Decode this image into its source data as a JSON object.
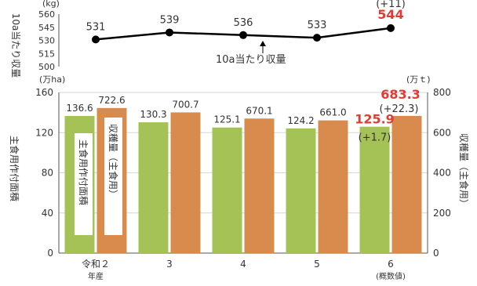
{
  "chart_data": [
    {
      "type": "line",
      "categories": [
        "令和２\n年産",
        "3",
        "4",
        "5",
        "6\n(概数値)"
      ],
      "values": [
        531,
        539,
        536,
        533,
        544
      ],
      "value_labels": [
        "531",
        "539",
        "536",
        "533",
        "544"
      ],
      "highlight_index": 4,
      "change_label": "(+11)",
      "ylim": [
        500,
        560
      ],
      "yticks": [
        "500",
        "515",
        "530",
        "545",
        "560"
      ],
      "unit": "(kg)",
      "ylabel": "10a当たり収量",
      "annotation": "10a当たり収量",
      "line_color": "#000000"
    },
    {
      "type": "bar",
      "categories": [
        "令和２\n年産",
        "3",
        "4",
        "5",
        "6\n(概数値)"
      ],
      "series": [
        {
          "name": "主食用作付面積",
          "values": [
            136.6,
            130.3,
            125.1,
            124.2,
            125.9
          ],
          "labels": [
            "136.6",
            "130.3",
            "125.1",
            "124.2",
            "125.9"
          ],
          "color": "#a5c257",
          "axis": "left"
        },
        {
          "name": "収穫量（主食用）",
          "values": [
            722.6,
            700.7,
            670.1,
            661.0,
            683.3
          ],
          "labels": [
            "722.6",
            "700.7",
            "670.1",
            "661.0",
            "683.3"
          ],
          "color": "#d98b4d",
          "axis": "right"
        }
      ],
      "highlight_index": 4,
      "area_change": "(+1.7)",
      "harvest_change": "(+22.3)",
      "ylim_left": [
        0,
        160
      ],
      "yticks_left": [
        "0",
        "40",
        "80",
        "120",
        "160"
      ],
      "ylim_right": [
        0,
        800
      ],
      "yticks_right": [
        "0",
        "200",
        "400",
        "600",
        "800"
      ],
      "unit_left": "(万ha)",
      "unit_right": "(万ｔ)",
      "ylabel_left": "主食用作付面積",
      "ylabel_right": "収穫量（主食用）",
      "legend_left": "主食用作付面積",
      "legend_right": "収穫量（主食用）"
    }
  ]
}
